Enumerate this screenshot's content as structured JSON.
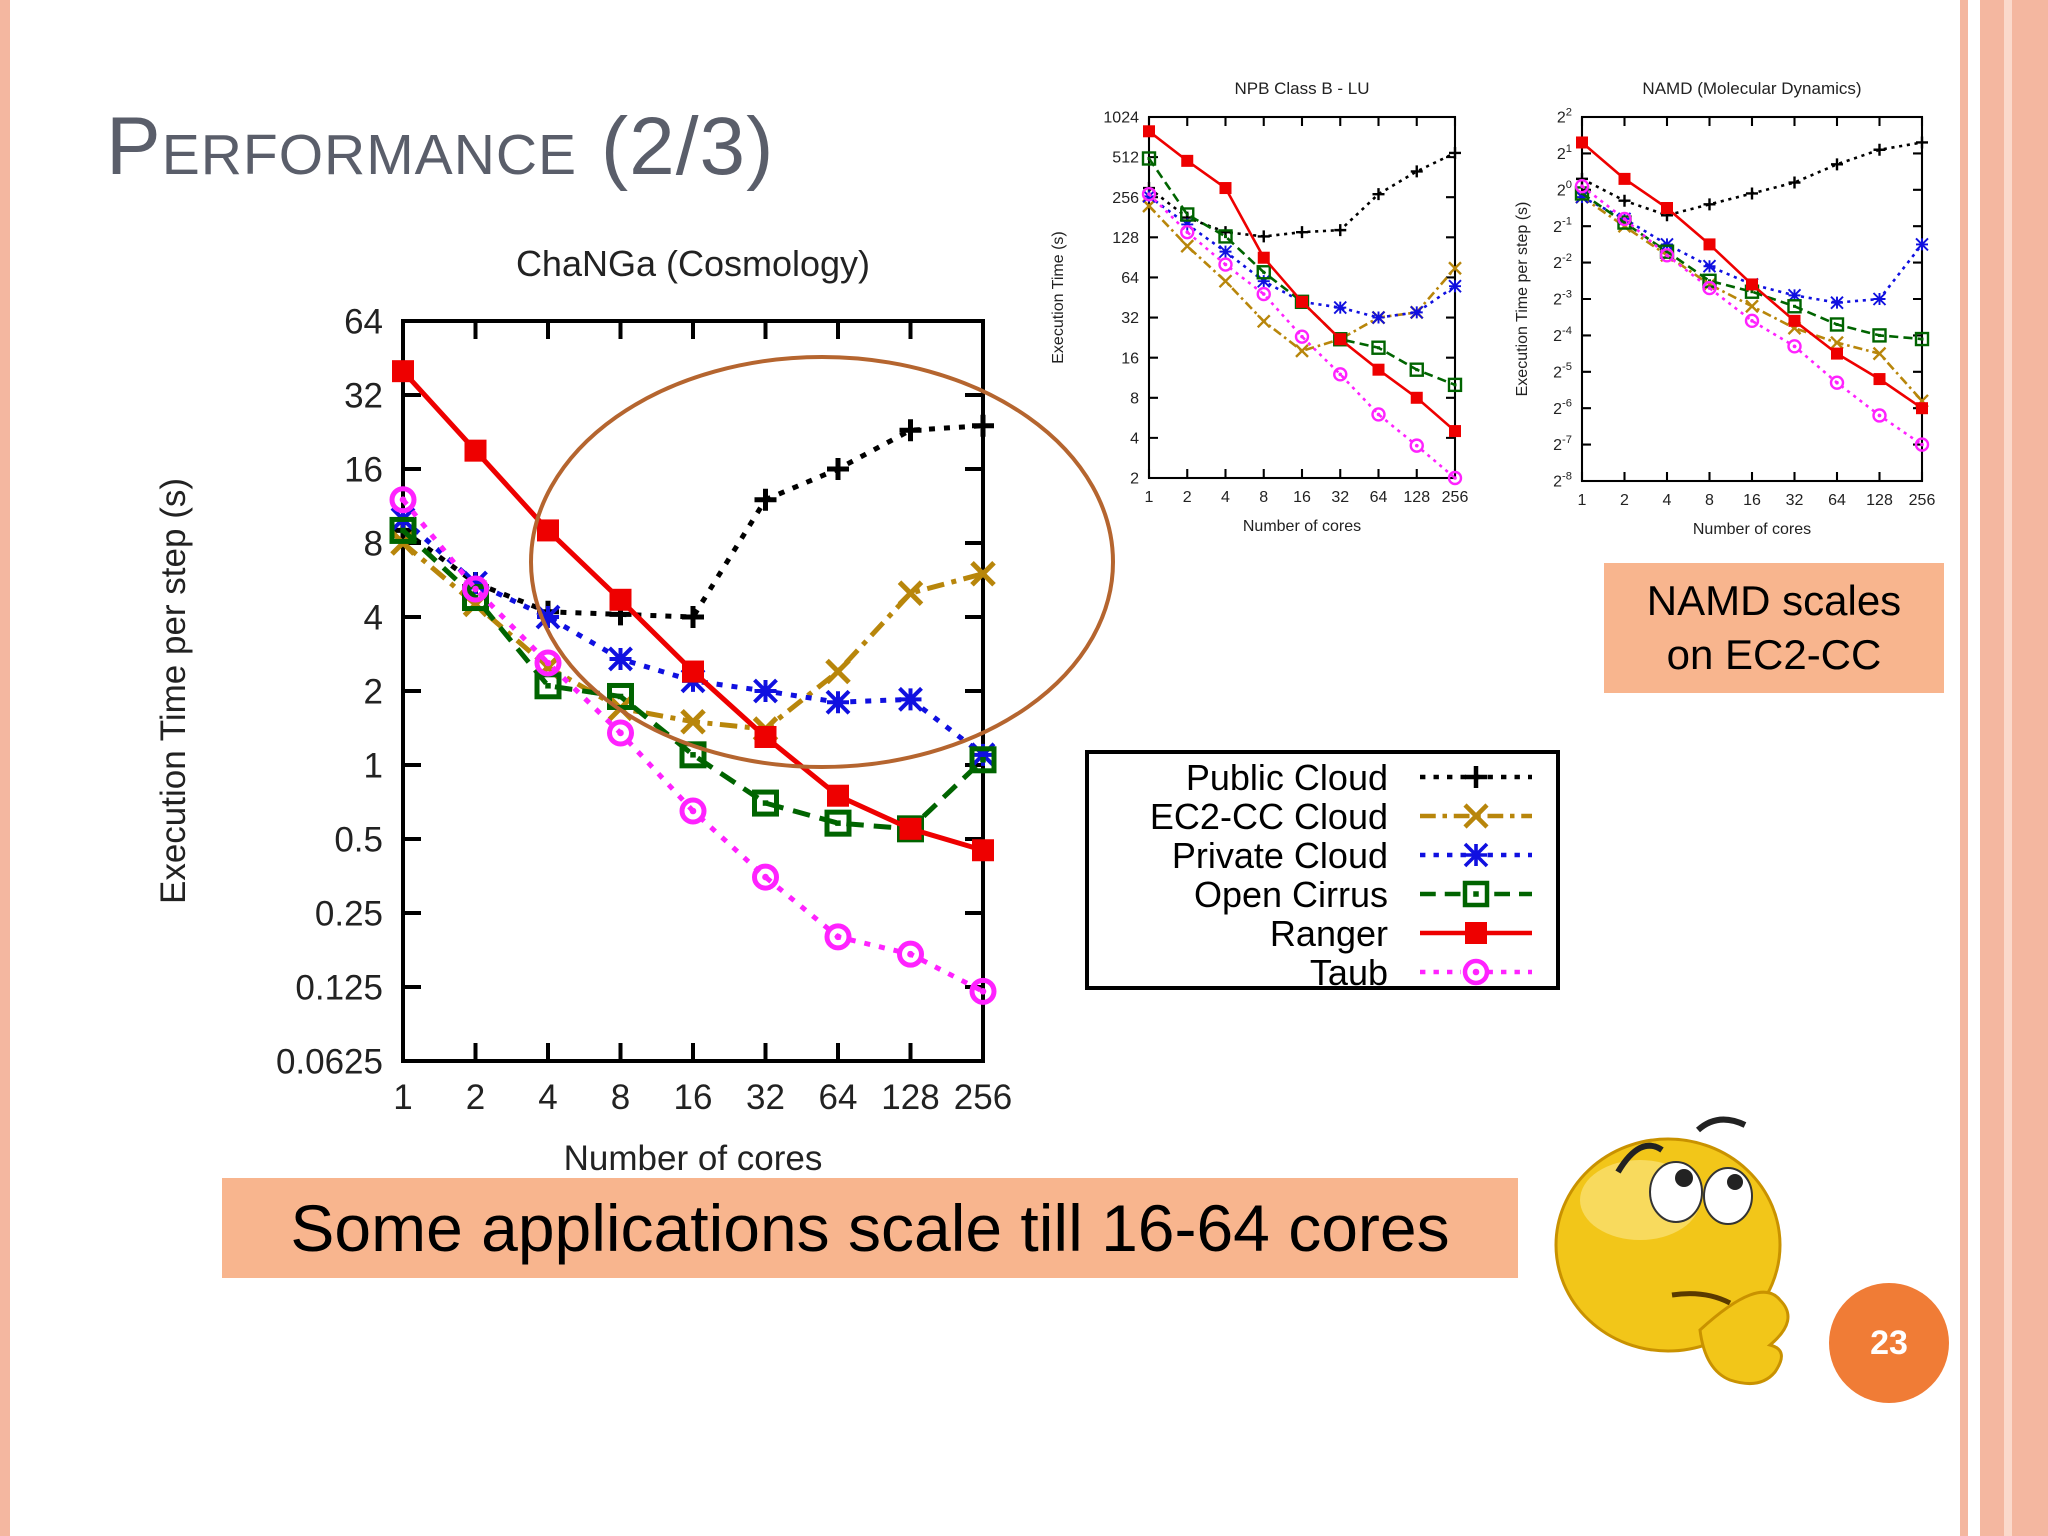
{
  "slide": {
    "title": "Performance (2/3)",
    "callout": "Some applications scale till 16-64 cores",
    "namd_note": "NAMD scales\non EC2-CC",
    "page_number": "23"
  },
  "colors": {
    "Public Cloud": "#000000",
    "EC2-CC Cloud": "#b8860b",
    "Private Cloud": "#1010e0",
    "Open Cirrus": "#006400",
    "Ranger": "#ee0000",
    "Taub": "#ff22ff",
    "callout_bg": "#f8b58e",
    "circle": "#b5652f",
    "border": "#f4b7a0"
  },
  "legend": {
    "items": [
      {
        "name": "Public Cloud",
        "marker": "plus",
        "dash": "dotted"
      },
      {
        "name": "EC2-CC Cloud",
        "marker": "x",
        "dash": "dashdot"
      },
      {
        "name": "Private Cloud",
        "marker": "asterisk",
        "dash": "dotted"
      },
      {
        "name": "Open Cirrus",
        "marker": "square",
        "dash": "dashed"
      },
      {
        "name": "Ranger",
        "marker": "filled-square",
        "dash": "solid"
      },
      {
        "name": "Taub",
        "marker": "circle",
        "dash": "dotted"
      }
    ]
  },
  "chart_data": [
    {
      "id": "changa",
      "type": "line",
      "title": "ChaNGa (Cosmology)",
      "xlabel": "Number of cores",
      "ylabel": "Execution Time per step (s)",
      "y_scale": "log2",
      "categories": [
        "1",
        "2",
        "4",
        "8",
        "16",
        "32",
        "64",
        "128",
        "256"
      ],
      "y_ticks": [
        "0.0625",
        "0.125",
        "0.25",
        "0.5",
        "1",
        "2",
        "4",
        "8",
        "16",
        "32",
        "64"
      ],
      "ylim": [
        0.0625,
        64
      ],
      "series": [
        {
          "name": "Public Cloud",
          "values": [
            9,
            5.5,
            4.2,
            4.1,
            4,
            12,
            16,
            23,
            24
          ]
        },
        {
          "name": "EC2-CC Cloud",
          "values": [
            8,
            4.5,
            2.5,
            1.7,
            1.5,
            1.4,
            2.4,
            5,
            6
          ]
        },
        {
          "name": "Private Cloud",
          "values": [
            10,
            5.5,
            4,
            2.7,
            2.2,
            2,
            1.8,
            1.85,
            1.1
          ]
        },
        {
          "name": "Open Cirrus",
          "values": [
            9,
            4.8,
            2.1,
            1.9,
            1.1,
            0.7,
            0.58,
            0.55,
            1.05
          ]
        },
        {
          "name": "Ranger",
          "values": [
            40,
            19,
            9,
            4.7,
            2.4,
            1.3,
            0.75,
            0.55,
            0.45
          ]
        },
        {
          "name": "Taub",
          "values": [
            12,
            5.2,
            2.6,
            1.35,
            0.65,
            0.35,
            0.2,
            0.17,
            0.12
          ]
        }
      ]
    },
    {
      "id": "npb",
      "type": "line",
      "title": "NPB Class B - LU",
      "xlabel": "Number of cores",
      "ylabel": "Execution Time (s)",
      "y_scale": "log2",
      "categories": [
        "1",
        "2",
        "4",
        "8",
        "16",
        "32",
        "64",
        "128",
        "256"
      ],
      "y_ticks": [
        "2",
        "4",
        "8",
        "16",
        "32",
        "64",
        "128",
        "256",
        "512",
        "1024"
      ],
      "ylim": [
        2,
        1024
      ],
      "series": [
        {
          "name": "Public Cloud",
          "values": [
            300,
            180,
            140,
            130,
            140,
            145,
            270,
            400,
            550
          ]
        },
        {
          "name": "EC2-CC Cloud",
          "values": [
            220,
            110,
            60,
            30,
            18,
            22,
            32,
            35,
            75
          ]
        },
        {
          "name": "Private Cloud",
          "values": [
            260,
            160,
            100,
            60,
            42,
            38,
            32,
            35,
            55
          ]
        },
        {
          "name": "Open Cirrus",
          "values": [
            500,
            190,
            130,
            70,
            42,
            22,
            19,
            13,
            10
          ]
        },
        {
          "name": "Ranger",
          "values": [
            800,
            480,
            300,
            90,
            42,
            22,
            13,
            8,
            4.5
          ]
        },
        {
          "name": "Taub",
          "values": [
            270,
            140,
            80,
            48,
            23,
            12,
            6,
            3.5,
            2
          ]
        }
      ]
    },
    {
      "id": "namd",
      "type": "line",
      "title": "NAMD (Molecular Dynamics)",
      "xlabel": "Number of cores",
      "ylabel": "Execution Time per step (s)",
      "y_scale": "log2",
      "categories": [
        "1",
        "2",
        "4",
        "8",
        "16",
        "32",
        "64",
        "128",
        "256"
      ],
      "y_ticks": [
        "2^-8",
        "2^-7",
        "2^-6",
        "2^-5",
        "2^-4",
        "2^-3",
        "2^-2",
        "2^-1",
        "2^0",
        "2^1",
        "2^2"
      ],
      "ylim": [
        -8,
        2
      ],
      "y_values_are_log2": true,
      "series": [
        {
          "name": "Public Cloud",
          "values": [
            0.3,
            -0.3,
            -0.7,
            -0.4,
            -0.1,
            0.2,
            0.7,
            1.1,
            1.3
          ]
        },
        {
          "name": "EC2-CC Cloud",
          "values": [
            -0.2,
            -1,
            -1.8,
            -2.6,
            -3.2,
            -3.8,
            -4.2,
            -4.5,
            -5.8
          ]
        },
        {
          "name": "Private Cloud",
          "values": [
            -0.2,
            -0.8,
            -1.5,
            -2.1,
            -2.6,
            -2.9,
            -3.1,
            -3,
            -1.5
          ]
        },
        {
          "name": "Open Cirrus",
          "values": [
            -0.1,
            -0.9,
            -1.7,
            -2.5,
            -2.8,
            -3.2,
            -3.7,
            -4,
            -4.1
          ]
        },
        {
          "name": "Ranger",
          "values": [
            1.3,
            0.3,
            -0.5,
            -1.5,
            -2.6,
            -3.6,
            -4.5,
            -5.2,
            -6
          ]
        },
        {
          "name": "Taub",
          "values": [
            0.1,
            -0.8,
            -1.8,
            -2.7,
            -3.6,
            -4.3,
            -5.3,
            -6.2,
            -7
          ]
        }
      ]
    }
  ]
}
